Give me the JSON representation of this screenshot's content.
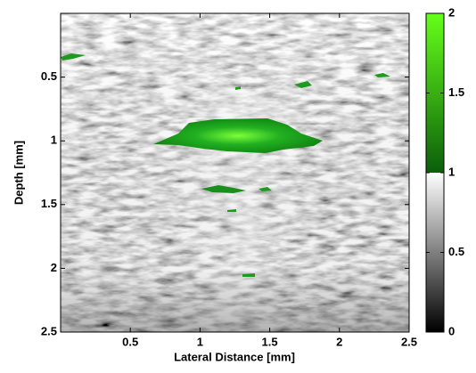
{
  "chart_data": {
    "type": "image",
    "xlabel": "Lateral Distance [mm]",
    "ylabel": "Depth [mm]",
    "xlim": [
      0,
      2.5
    ],
    "xticks": [
      0.5,
      1,
      1.5,
      2,
      2.5
    ],
    "ylim": [
      0,
      2.5
    ],
    "yticks": [
      0.5,
      1,
      1.5,
      2,
      2.5
    ],
    "y_reversed": true,
    "colorbar": {
      "lim": [
        0,
        2
      ],
      "ticks": [
        0,
        0.5,
        1,
        1.5,
        2
      ],
      "segments": [
        {
          "from": 0,
          "to": 1,
          "colors": [
            "#000000",
            "#ffffff"
          ]
        },
        {
          "from": 1,
          "to": 2,
          "colors": [
            "#0b5e0b",
            "#66ff1a"
          ]
        }
      ]
    }
  }
}
